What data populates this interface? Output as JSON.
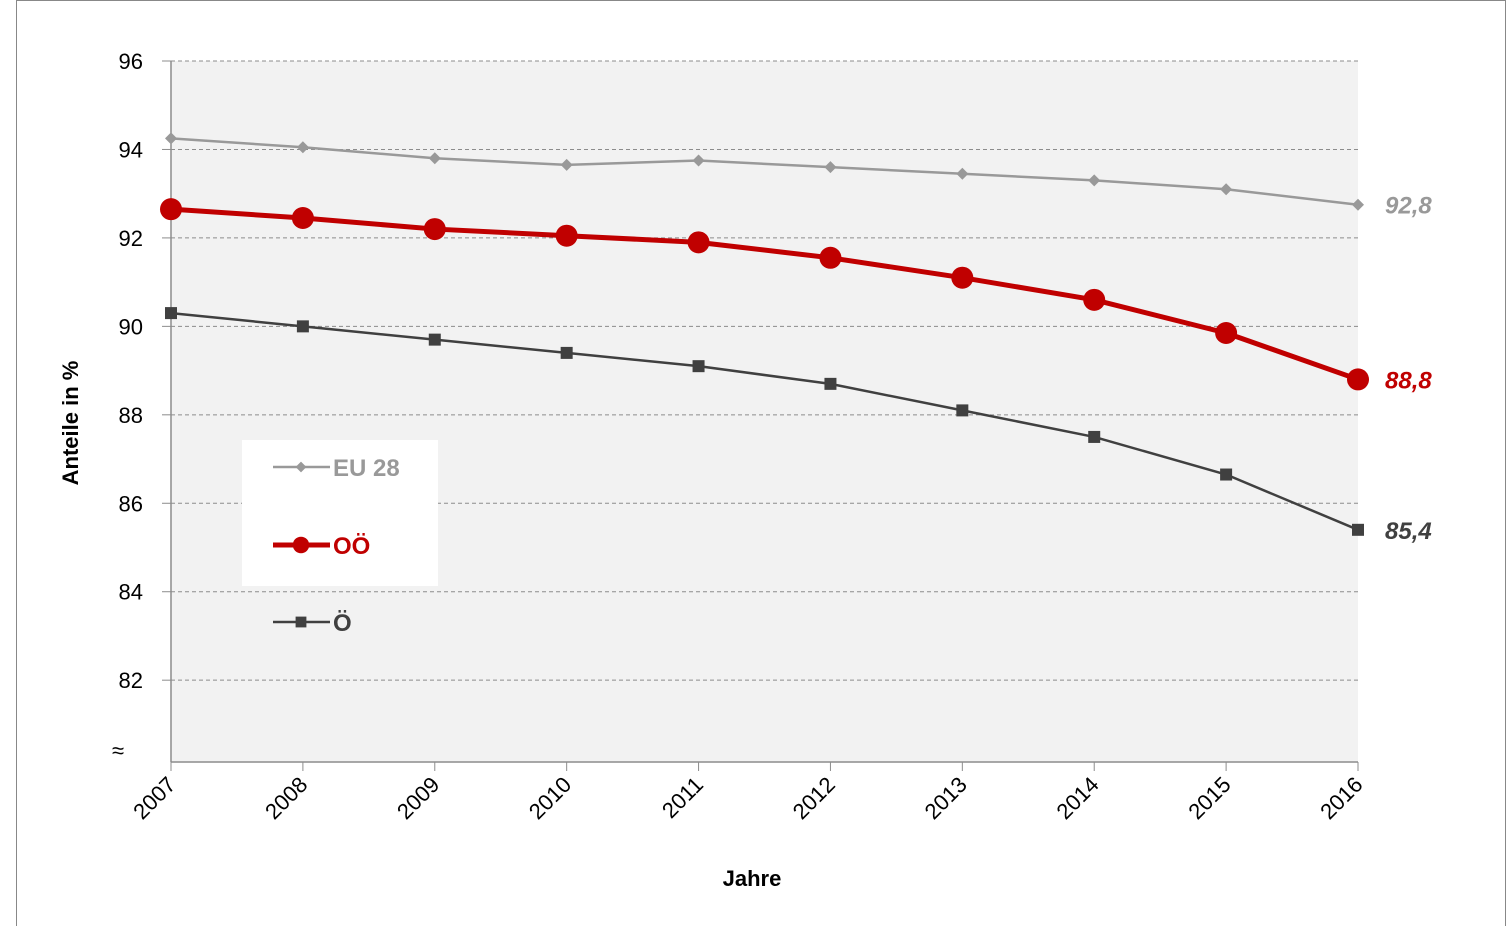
{
  "chart_data": {
    "type": "line",
    "categories": [
      "2007",
      "2008",
      "2009",
      "2010",
      "2011",
      "2012",
      "2013",
      "2014",
      "2015",
      "2016"
    ],
    "xlabel": "Jahre",
    "ylabel": "Anteile in %",
    "ylim": [
      80,
      96
    ],
    "yticks": [
      96,
      94,
      92,
      90,
      88,
      86,
      84,
      82
    ],
    "axis_break_symbol": "≈",
    "grid": true,
    "legend_position": "left-middle",
    "series": [
      {
        "name": "EU 28",
        "color": "#999999",
        "marker": "diamond",
        "values": [
          94.25,
          94.05,
          93.8,
          93.65,
          93.75,
          93.6,
          93.45,
          93.3,
          93.1,
          92.75
        ],
        "end_label": "92,8"
      },
      {
        "name": "OÖ",
        "color": "#c00000",
        "marker": "circle",
        "values": [
          92.65,
          92.45,
          92.2,
          92.05,
          91.9,
          91.55,
          91.1,
          90.6,
          89.85,
          88.8
        ],
        "end_label": "88,8"
      },
      {
        "name": "Ö",
        "color": "#404040",
        "marker": "square",
        "values": [
          90.3,
          90.0,
          89.7,
          89.4,
          89.1,
          88.7,
          88.1,
          87.5,
          86.65,
          85.4
        ],
        "end_label": "85,4"
      }
    ]
  }
}
